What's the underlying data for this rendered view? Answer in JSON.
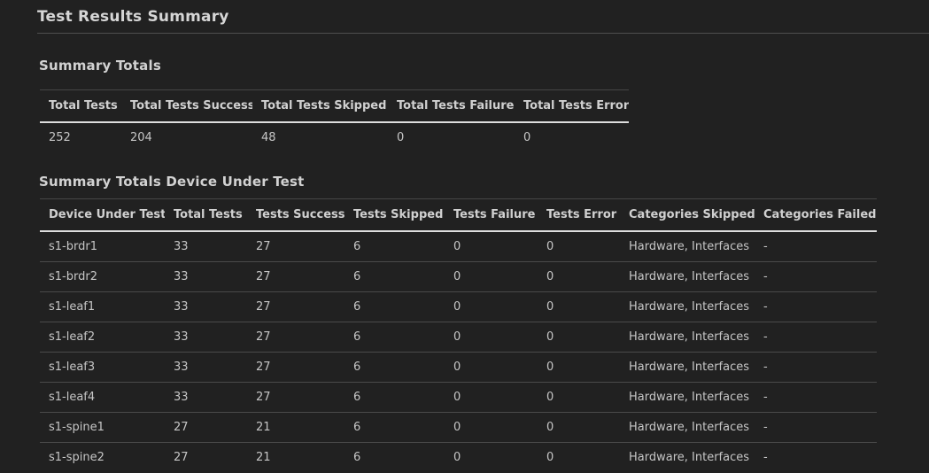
{
  "page": {
    "title": "Test Results Summary"
  },
  "summary_totals": {
    "heading": "Summary Totals",
    "columns": [
      "Total Tests",
      "Total Tests Success",
      "Total Tests Skipped",
      "Total Tests Failure",
      "Total Tests Error"
    ],
    "rows": [
      [
        "252",
        "204",
        "48",
        "0",
        "0"
      ]
    ]
  },
  "summary_totals_dut": {
    "heading": "Summary Totals Device Under Test",
    "columns": [
      "Device Under Test",
      "Total Tests",
      "Tests Success",
      "Tests Skipped",
      "Tests Failure",
      "Tests Error",
      "Categories Skipped",
      "Categories Failed"
    ],
    "rows": [
      [
        "s1-brdr1",
        "33",
        "27",
        "6",
        "0",
        "0",
        "Hardware, Interfaces",
        "-"
      ],
      [
        "s1-brdr2",
        "33",
        "27",
        "6",
        "0",
        "0",
        "Hardware, Interfaces",
        "-"
      ],
      [
        "s1-leaf1",
        "33",
        "27",
        "6",
        "0",
        "0",
        "Hardware, Interfaces",
        "-"
      ],
      [
        "s1-leaf2",
        "33",
        "27",
        "6",
        "0",
        "0",
        "Hardware, Interfaces",
        "-"
      ],
      [
        "s1-leaf3",
        "33",
        "27",
        "6",
        "0",
        "0",
        "Hardware, Interfaces",
        "-"
      ],
      [
        "s1-leaf4",
        "33",
        "27",
        "6",
        "0",
        "0",
        "Hardware, Interfaces",
        "-"
      ],
      [
        "s1-spine1",
        "27",
        "21",
        "6",
        "0",
        "0",
        "Hardware, Interfaces",
        "-"
      ],
      [
        "s1-spine2",
        "27",
        "21",
        "6",
        "0",
        "0",
        "Hardware, Interfaces",
        "-"
      ]
    ]
  },
  "colors": {
    "background": "#212121",
    "title_text": "#d6d6d6",
    "body_text": "#c6c6c6",
    "title_rule": "#4e4e4e",
    "header_underline": "#dedede",
    "row_separator": "#4a4a4a"
  }
}
